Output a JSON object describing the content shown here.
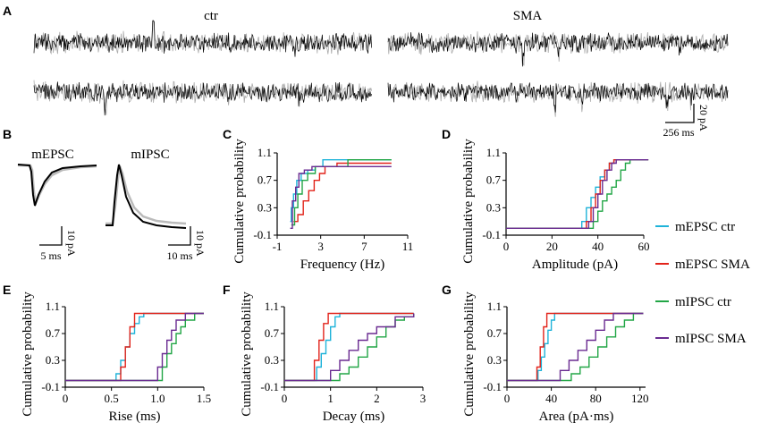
{
  "panel_letters": [
    "A",
    "B",
    "C",
    "D",
    "E",
    "F",
    "G"
  ],
  "traces": {
    "ctr_label": "ctr",
    "sma_label": "SMA",
    "scale_y": "20 pA",
    "scale_x": "256 ms",
    "mepsc_label": "mEPSC",
    "mipsc_label": "mIPSC",
    "mepsc_scale_y": "10 pA",
    "mepsc_scale_x": "5 ms",
    "mipsc_scale_y": "10 pA",
    "mipsc_scale_x": "10 ms"
  },
  "colors": {
    "mEPSC_ctr": "#1fb3d9",
    "mEPSC_SMA": "#e2231a",
    "mIPSC_ctr": "#22a646",
    "mIPSC_SMA": "#6a2b91"
  },
  "legend": [
    {
      "key": "mEPSC_ctr",
      "label": "mEPSC ctr"
    },
    {
      "key": "mEPSC_SMA",
      "label": "mEPSC SMA"
    },
    {
      "key": "mIPSC_ctr",
      "label": "mIPSC ctr"
    },
    {
      "key": "mIPSC_SMA",
      "label": "mIPSC SMA"
    }
  ],
  "chart_data": [
    {
      "panel": "C",
      "type": "line",
      "step": true,
      "ylabel": "Cumulative probability",
      "xlabel": "Frequency (Hz)",
      "xlim": [
        -1,
        11
      ],
      "ylim": [
        -0.1,
        1.1
      ],
      "xticks": [
        -1,
        3,
        7,
        11
      ],
      "xtick_labels": [
        "-1",
        "3",
        "7",
        "11"
      ],
      "yticks": [
        -0.1,
        0.3,
        0.7,
        1.1
      ],
      "ytick_labels": [
        "-0.1",
        "0.3",
        "0.7",
        "1.1"
      ],
      "series": [
        {
          "name": "mEPSC ctr",
          "x": [
            0.2,
            0.3,
            0.5,
            0.8,
            1.2,
            1.8,
            2.5,
            3.2,
            9.5
          ],
          "y": [
            0.1,
            0.3,
            0.5,
            0.7,
            0.8,
            0.85,
            0.9,
            1.0,
            1.0
          ]
        },
        {
          "name": "mEPSC SMA",
          "x": [
            0.5,
            0.9,
            1.4,
            1.9,
            2.4,
            2.9,
            3.4,
            4.5,
            9.5
          ],
          "y": [
            0.1,
            0.2,
            0.4,
            0.55,
            0.7,
            0.8,
            0.9,
            0.95,
            0.95
          ]
        },
        {
          "name": "mIPSC ctr",
          "x": [
            0.3,
            0.6,
            0.9,
            1.3,
            1.8,
            2.5,
            5.5,
            9.5
          ],
          "y": [
            0.05,
            0.3,
            0.5,
            0.7,
            0.8,
            0.9,
            1.0,
            1.0
          ]
        },
        {
          "name": "mIPSC SMA",
          "x": [
            0.2,
            0.4,
            0.7,
            1.0,
            1.5,
            2.2,
            9.5
          ],
          "y": [
            0.0,
            0.4,
            0.6,
            0.8,
            0.85,
            0.9,
            0.9
          ]
        }
      ]
    },
    {
      "panel": "D",
      "type": "line",
      "step": true,
      "ylabel": "Cumulative probability",
      "xlabel": "Amplitude (pA)",
      "xlim": [
        0,
        60
      ],
      "ylim": [
        -0.1,
        1.1
      ],
      "xticks": [
        0,
        20,
        40,
        60
      ],
      "xtick_labels": [
        "0",
        "20",
        "40",
        "60"
      ],
      "yticks": [
        -0.1,
        0.3,
        0.7,
        1.1
      ],
      "ytick_labels": [
        "-0.1",
        "0.3",
        "0.7",
        "1.1"
      ],
      "series": [
        {
          "name": "mEPSC ctr",
          "x": [
            0,
            31,
            33,
            35,
            37,
            39,
            41,
            43,
            45,
            47,
            49,
            62
          ],
          "y": [
            0,
            0,
            0.1,
            0.3,
            0.45,
            0.6,
            0.75,
            0.85,
            0.95,
            1.0,
            1.0,
            1.0
          ]
        },
        {
          "name": "mEPSC SMA",
          "x": [
            0,
            33,
            35,
            37,
            39,
            41,
            43,
            45,
            47,
            62
          ],
          "y": [
            0,
            0,
            0.1,
            0.3,
            0.5,
            0.7,
            0.85,
            0.95,
            1.0,
            1.0
          ]
        },
        {
          "name": "mIPSC ctr",
          "x": [
            0,
            36,
            38,
            40,
            42,
            44,
            46,
            48,
            50,
            52,
            54,
            62
          ],
          "y": [
            0,
            0,
            0.1,
            0.25,
            0.4,
            0.5,
            0.6,
            0.7,
            0.85,
            0.95,
            1.0,
            1.0
          ]
        },
        {
          "name": "mIPSC SMA",
          "x": [
            0,
            34,
            36,
            38,
            40,
            42,
            44,
            46,
            48,
            62
          ],
          "y": [
            0,
            0,
            0.1,
            0.3,
            0.5,
            0.7,
            0.85,
            0.95,
            1.0,
            1.0
          ]
        }
      ]
    },
    {
      "panel": "E",
      "type": "line",
      "step": true,
      "ylabel": "Cumulative probability",
      "xlabel": "Rise (ms)",
      "xlim": [
        0,
        1.5
      ],
      "ylim": [
        -0.1,
        1.1
      ],
      "xticks": [
        0,
        0.5,
        1.0,
        1.5
      ],
      "xtick_labels": [
        "0",
        "0.5",
        "1.0",
        "1.5"
      ],
      "yticks": [
        -0.1,
        0.3,
        0.7,
        1.1
      ],
      "ytick_labels": [
        "-0.1",
        "0.3",
        "0.7",
        "1.1"
      ],
      "series": [
        {
          "name": "mEPSC ctr",
          "x": [
            0,
            0.5,
            0.55,
            0.6,
            0.65,
            0.7,
            0.75,
            0.8,
            0.85,
            1.5
          ],
          "y": [
            0,
            0,
            0.1,
            0.3,
            0.5,
            0.7,
            0.85,
            0.95,
            1.0,
            1.0
          ]
        },
        {
          "name": "mEPSC SMA",
          "x": [
            0,
            0.55,
            0.6,
            0.65,
            0.7,
            0.75,
            1.5
          ],
          "y": [
            0,
            0,
            0.2,
            0.5,
            0.8,
            1.0,
            1.0
          ]
        },
        {
          "name": "mIPSC ctr",
          "x": [
            0,
            1.0,
            1.05,
            1.1,
            1.15,
            1.2,
            1.25,
            1.3,
            1.4,
            1.5
          ],
          "y": [
            0,
            0,
            0.2,
            0.4,
            0.55,
            0.7,
            0.8,
            0.9,
            1.0,
            1.0
          ]
        },
        {
          "name": "mIPSC SMA",
          "x": [
            0,
            0.95,
            1.0,
            1.05,
            1.1,
            1.15,
            1.2,
            1.3,
            1.5
          ],
          "y": [
            0,
            0,
            0.2,
            0.4,
            0.6,
            0.75,
            0.9,
            1.0,
            1.0
          ]
        }
      ]
    },
    {
      "panel": "F",
      "type": "line",
      "step": true,
      "ylabel": "Cumulative probability",
      "xlabel": "Decay (ms)",
      "xlim": [
        0,
        3
      ],
      "ylim": [
        -0.1,
        1.1
      ],
      "xticks": [
        0,
        1,
        2,
        3
      ],
      "xtick_labels": [
        "0",
        "1",
        "2",
        "3"
      ],
      "yticks": [
        -0.1,
        0.3,
        0.7,
        1.1
      ],
      "ytick_labels": [
        "-0.1",
        "0.3",
        "0.7",
        "1.1"
      ],
      "series": [
        {
          "name": "mEPSC ctr",
          "x": [
            0,
            0.6,
            0.7,
            0.8,
            0.9,
            1.0,
            1.1,
            1.2,
            2.8
          ],
          "y": [
            0,
            0,
            0.2,
            0.4,
            0.6,
            0.8,
            0.95,
            1.0,
            1.0
          ]
        },
        {
          "name": "mEPSC SMA",
          "x": [
            0,
            0.55,
            0.65,
            0.75,
            0.85,
            0.95,
            2.8
          ],
          "y": [
            0,
            0,
            0.3,
            0.6,
            0.85,
            1.0,
            1.0
          ]
        },
        {
          "name": "mIPSC ctr",
          "x": [
            0,
            1.0,
            1.2,
            1.4,
            1.6,
            1.8,
            2.0,
            2.2,
            2.4,
            2.6,
            2.8
          ],
          "y": [
            0,
            0,
            0.1,
            0.2,
            0.35,
            0.5,
            0.65,
            0.8,
            0.9,
            0.95,
            1.0
          ]
        },
        {
          "name": "mIPSC SMA",
          "x": [
            0,
            0.8,
            1.0,
            1.2,
            1.4,
            1.6,
            1.8,
            2.0,
            2.4,
            2.8
          ],
          "y": [
            0,
            0,
            0.15,
            0.3,
            0.45,
            0.6,
            0.7,
            0.8,
            0.95,
            1.0
          ]
        }
      ]
    },
    {
      "panel": "G",
      "type": "line",
      "step": true,
      "ylabel": "Cumulative probability",
      "xlabel": "Area (pA·ms)",
      "xlim": [
        0,
        125
      ],
      "ylim": [
        -0.1,
        1.1
      ],
      "xticks": [
        0,
        40,
        80,
        120
      ],
      "xtick_labels": [
        "0",
        "40",
        "80",
        "120"
      ],
      "yticks": [
        -0.1,
        0.3,
        0.7,
        1.1
      ],
      "ytick_labels": [
        "-0.1",
        "0.3",
        "0.7",
        "1.1"
      ],
      "series": [
        {
          "name": "mEPSC ctr",
          "x": [
            0,
            25,
            28,
            31,
            34,
            37,
            40,
            43,
            123
          ],
          "y": [
            0,
            0,
            0.15,
            0.35,
            0.55,
            0.75,
            0.9,
            1.0,
            1.0
          ]
        },
        {
          "name": "mEPSC SMA",
          "x": [
            0,
            24,
            27,
            30,
            33,
            36,
            123
          ],
          "y": [
            0,
            0,
            0.2,
            0.5,
            0.8,
            1.0,
            1.0
          ]
        },
        {
          "name": "mIPSC ctr",
          "x": [
            0,
            50,
            58,
            66,
            74,
            82,
            90,
            98,
            106,
            114,
            123
          ],
          "y": [
            0,
            0,
            0.1,
            0.2,
            0.35,
            0.5,
            0.65,
            0.8,
            0.9,
            1.0,
            1.0
          ]
        },
        {
          "name": "mIPSC SMA",
          "x": [
            0,
            40,
            48,
            56,
            64,
            72,
            80,
            88,
            96,
            123
          ],
          "y": [
            0,
            0,
            0.15,
            0.3,
            0.45,
            0.6,
            0.75,
            0.9,
            1.0,
            1.0
          ]
        }
      ]
    }
  ]
}
